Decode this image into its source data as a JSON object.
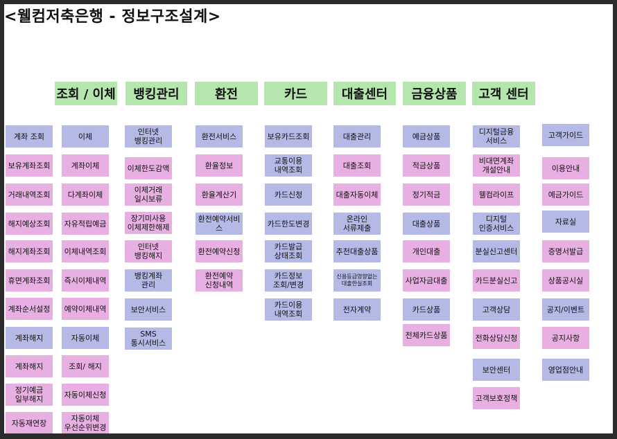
{
  "title": "<웰컴저축은행 - 정보구조설계>",
  "colors": {
    "header": "#b5e6ad",
    "blue": "#b4b9e6",
    "pink": "#e8b0e2"
  },
  "columns": [
    {
      "header": "조회 / 이체",
      "items": [
        {
          "label": "계좌 조회",
          "color": "blue"
        },
        {
          "label": "보유계좌조회",
          "color": "pink"
        },
        {
          "label": "거래내역조회",
          "color": "pink"
        },
        {
          "label": "해지예상조회",
          "color": "pink"
        },
        {
          "label": "해지계좌조회",
          "color": "pink"
        },
        {
          "label": "휴면계좌조회",
          "color": "pink"
        },
        {
          "label": "계좌순서설정",
          "color": "pink"
        },
        {
          "label": "계좌해지",
          "color": "blue"
        },
        {
          "label": "계좌해지",
          "color": "pink"
        },
        {
          "label": "정기예금\n일부해지",
          "color": "pink"
        },
        {
          "label": "자동재연장",
          "color": "pink"
        }
      ]
    },
    {
      "header": "",
      "items": [
        {
          "label": "이체",
          "color": "blue"
        },
        {
          "label": "계좌이체",
          "color": "pink"
        },
        {
          "label": "다계좌이체",
          "color": "pink"
        },
        {
          "label": "자유적립예금",
          "color": "pink"
        },
        {
          "label": "이체내역조회",
          "color": "pink"
        },
        {
          "label": "즉시이체내역",
          "color": "pink"
        },
        {
          "label": "예약이체내역",
          "color": "pink"
        },
        {
          "label": "자동이체",
          "color": "blue"
        },
        {
          "label": "조회/ 해지",
          "color": "pink"
        },
        {
          "label": "자동이체신청",
          "color": "pink"
        },
        {
          "label": "자동이체\n우선순위변경",
          "color": "pink"
        }
      ]
    },
    {
      "header": "뱅킹관리",
      "items": [
        {
          "label": "인터넷\n뱅킹관리",
          "color": "blue"
        },
        {
          "label": "이체한도감액",
          "color": "pink"
        },
        {
          "label": "이체거래\n일시보류",
          "color": "pink"
        },
        {
          "label": "장기미사용\n이체제한해제",
          "color": "pink"
        },
        {
          "label": "인터넷\n뱅킹해지",
          "color": "pink"
        },
        {
          "label": "뱅킹계좌\n관리",
          "color": "blue"
        },
        {
          "label": "보안서비스",
          "color": "blue"
        },
        {
          "label": "SMS\n통시서비스",
          "color": "blue"
        }
      ]
    },
    {
      "header": "환전",
      "items": [
        {
          "label": "환전서비스",
          "color": "blue"
        },
        {
          "label": "환율정보",
          "color": "pink"
        },
        {
          "label": "환율계산기",
          "color": "pink"
        },
        {
          "label": "환전예약서비스",
          "color": "blue"
        },
        {
          "label": "환전예약신청",
          "color": "pink"
        },
        {
          "label": "환전예약\n신청내역",
          "color": "pink"
        }
      ]
    },
    {
      "header": "카드",
      "items": [
        {
          "label": "보유카드조회",
          "color": "blue"
        },
        {
          "label": "교통이용\n내역조회",
          "color": "blue"
        },
        {
          "label": "카드신청",
          "color": "blue"
        },
        {
          "label": "카드한도변경",
          "color": "blue"
        },
        {
          "label": "카드발급\n상태조회",
          "color": "blue"
        },
        {
          "label": "카드정보\n조회/변경",
          "color": "blue"
        },
        {
          "label": "카드이용\n내역조회",
          "color": "blue"
        }
      ]
    },
    {
      "header": "대출센터",
      "items": [
        {
          "label": "대출관리",
          "color": "blue"
        },
        {
          "label": "대출조회",
          "color": "pink"
        },
        {
          "label": "대출자동이체",
          "color": "pink"
        },
        {
          "label": "온라인\n서류제출",
          "color": "blue"
        },
        {
          "label": "추천대출상품",
          "color": "blue"
        },
        {
          "label": "신용등급영향없는\n대출한실조회",
          "color": "blue",
          "small": true
        },
        {
          "label": "전자계약",
          "color": "blue"
        }
      ]
    },
    {
      "header": "금융상품",
      "items": [
        {
          "label": "예금상품",
          "color": "blue"
        },
        {
          "label": "적금상품",
          "color": "pink"
        },
        {
          "label": "정기적금",
          "color": "pink"
        },
        {
          "label": "대출상품",
          "color": "blue"
        },
        {
          "label": "개인대출",
          "color": "pink"
        },
        {
          "label": "사업자금대출",
          "color": "pink"
        },
        {
          "label": "카드상품",
          "color": "blue"
        },
        {
          "label": "전체카드상품",
          "color": "pink"
        }
      ]
    },
    {
      "header": "고객 센터",
      "items": [
        {
          "label": "디지털금융\n서비스",
          "color": "blue"
        },
        {
          "label": "비대면계좌\n개설안내",
          "color": "pink"
        },
        {
          "label": "웰컴라이프",
          "color": "pink"
        },
        {
          "label": "디지털\n인증서비스",
          "color": "blue"
        },
        {
          "label": "분실신고센터",
          "color": "blue"
        },
        {
          "label": "카드분실신고",
          "color": "pink"
        },
        {
          "label": "고객상담",
          "color": "blue"
        },
        {
          "label": "전화상담신청",
          "color": "pink"
        },
        {
          "label": "보안센터",
          "color": "blue"
        },
        {
          "label": "고객보호정책",
          "color": "pink"
        }
      ]
    },
    {
      "header": "",
      "items": [
        {
          "label": "고객가이드",
          "color": "blue"
        },
        {
          "label": "이용안내",
          "color": "pink"
        },
        {
          "label": "예금가이드",
          "color": "pink"
        },
        {
          "label": "자료실",
          "color": "blue"
        },
        {
          "label": "증명서발급",
          "color": "pink"
        },
        {
          "label": "상품공시실",
          "color": "pink"
        },
        {
          "label": "공지/이벤트",
          "color": "blue"
        },
        {
          "label": "공지사항",
          "color": "pink"
        },
        {
          "label": "영업점안내",
          "color": "blue"
        }
      ]
    }
  ]
}
